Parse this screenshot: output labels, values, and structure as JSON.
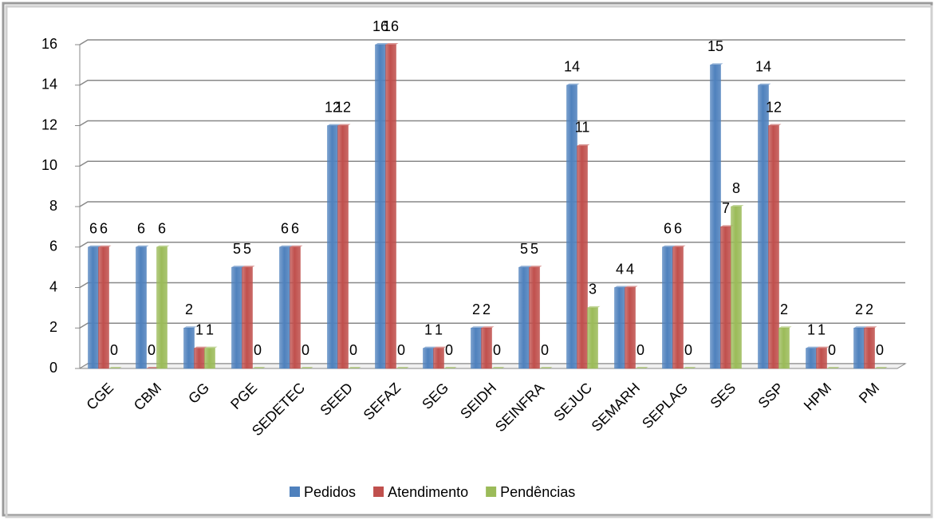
{
  "chart_data": {
    "type": "bar",
    "categories": [
      "CGE",
      "CBM",
      "GG",
      "PGE",
      "SEDETEC",
      "SEED",
      "SEFAZ",
      "SEG",
      "SEIDH",
      "SEINFRA",
      "SEJUC",
      "SEMARH",
      "SEPLAG",
      "SES",
      "SSP",
      "HPM",
      "PM"
    ],
    "series": [
      {
        "name": "Pedidos",
        "color": "#4f81bd",
        "values": [
          6,
          6,
          2,
          5,
          6,
          12,
          16,
          1,
          2,
          5,
          14,
          4,
          6,
          15,
          14,
          1,
          2
        ]
      },
      {
        "name": "Atendimento",
        "color": "#c0504d",
        "values": [
          6,
          0,
          1,
          5,
          6,
          12,
          16,
          1,
          2,
          5,
          11,
          4,
          6,
          7,
          12,
          1,
          2
        ]
      },
      {
        "name": "Pendências",
        "color": "#9bbb59",
        "values": [
          0,
          6,
          1,
          0,
          0,
          0,
          0,
          0,
          0,
          0,
          3,
          0,
          0,
          8,
          2,
          0,
          0
        ]
      }
    ],
    "ylim": [
      0,
      16
    ],
    "yticks": [
      0,
      2,
      4,
      6,
      8,
      10,
      12,
      14,
      16
    ],
    "grid": true,
    "legend": "bottom"
  }
}
